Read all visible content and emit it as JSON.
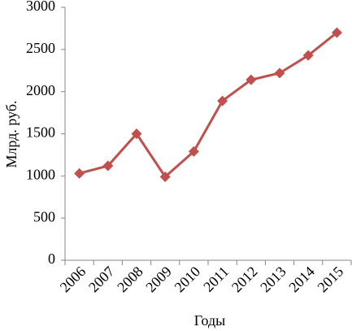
{
  "chart_data": {
    "type": "line",
    "x_label": "Годы",
    "y_label": "Млрд. руб.",
    "categories": [
      "2006",
      "2007",
      "2008",
      "2009",
      "2010",
      "2011",
      "2012",
      "2013",
      "2014",
      "2015"
    ],
    "series": [
      {
        "color": "#c0504d",
        "values": [
          1030,
          1120,
          1500,
          990,
          1290,
          1890,
          2140,
          2220,
          2430,
          2700
        ]
      }
    ],
    "ylim": [
      0,
      3000
    ],
    "yticks": [
      0,
      500,
      1000,
      1500,
      2000,
      2500,
      3000
    ],
    "grid": false
  }
}
